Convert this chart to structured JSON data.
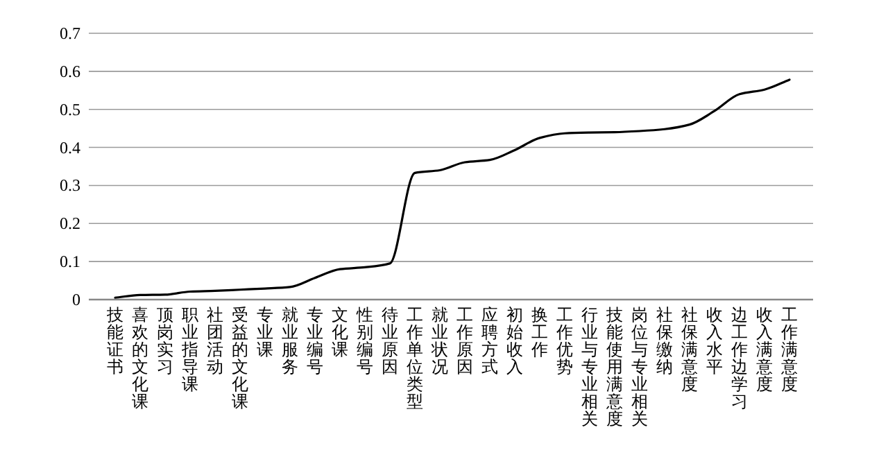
{
  "chart_data": {
    "type": "line",
    "categories": [
      "技能证书",
      "喜欢的文化课",
      "顶岗实习",
      "职业指导课",
      "社团活动",
      "受益的文化课",
      "专业课",
      "就业服务",
      "专业编号",
      "文化课",
      "性别编号",
      "待业原因",
      "工作单位类型",
      "就业状况",
      "工作原因",
      "应聘方式",
      "初始收入",
      "换工作",
      "工作优势",
      "行业与专业相关",
      "技能使用满意度",
      "岗位与专业相关",
      "社保缴纳",
      "社保满意度",
      "收入水平",
      "边工作边学习",
      "收入满意度",
      "工作满意度"
    ],
    "values": [
      0.005,
      0.012,
      0.013,
      0.021,
      0.023,
      0.026,
      0.029,
      0.033,
      0.057,
      0.08,
      0.085,
      0.095,
      0.333,
      0.34,
      0.361,
      0.367,
      0.393,
      0.425,
      0.437,
      0.439,
      0.44,
      0.443,
      0.448,
      0.46,
      0.496,
      0.54,
      0.552,
      0.578
    ],
    "color": "#000000",
    "ylim": [
      0,
      0.7
    ],
    "yticks": [
      0,
      0.1,
      0.2,
      0.3,
      0.4,
      0.5,
      0.6,
      0.7
    ],
    "grid": "y",
    "marker": "none",
    "line_style": "solid"
  }
}
